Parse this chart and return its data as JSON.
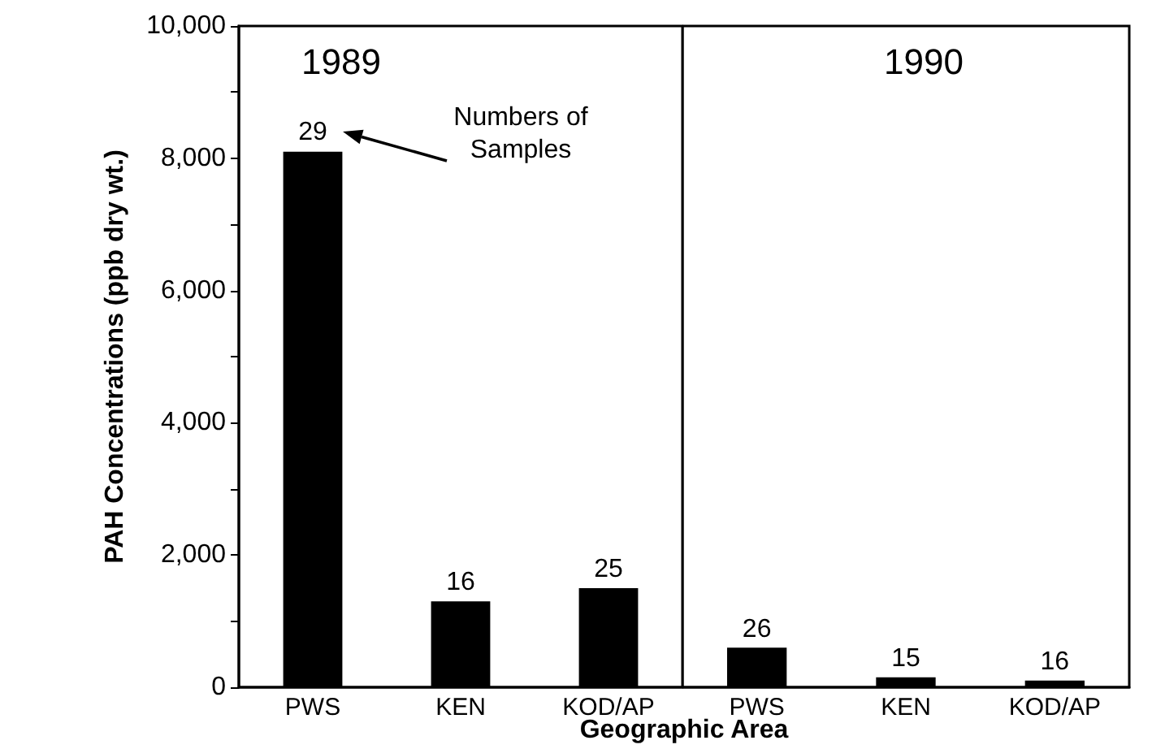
{
  "chart_data": [
    {
      "type": "bar",
      "title": "1989",
      "ylabel": "PAH Concentrations (ppb dry wt.)",
      "xlabel": "Geographic Area",
      "categories": [
        "PWS",
        "KEN",
        "KOD/AP"
      ],
      "values": [
        8100,
        1300,
        1500
      ],
      "color": "#000000",
      "annotations": [
        {
          "text": "29",
          "x": "PWS",
          "y": 8100
        },
        {
          "text": "16",
          "x": "KEN",
          "y": 1300
        },
        {
          "text": "25",
          "x": "KOD/AP",
          "y": 1500
        },
        "Numbers of Samples"
      ],
      "ylim": [
        0,
        10000
      ],
      "yticks": [
        0,
        {
          "value": 1000,
          "label": null
        },
        {
          "value": 2000,
          "label": "2,000"
        },
        {
          "value": 3000,
          "label": null
        },
        {
          "value": 4000,
          "label": "4,000"
        },
        {
          "value": 5000,
          "label": null
        },
        {
          "value": 6000,
          "label": "6,000"
        },
        {
          "value": 7000,
          "label": null
        },
        {
          "value": 8000,
          "label": "8,000"
        },
        {
          "value": 9000,
          "label": null
        },
        {
          "value": 10000,
          "label": "10,000"
        }
      ],
      "grid": false
    },
    {
      "type": "bar",
      "title": "1990",
      "categories": [
        "PWS",
        "KEN",
        "KOD/AP"
      ],
      "values": [
        600,
        150,
        100
      ],
      "color": "#000000",
      "annotations": [
        {
          "text": "26",
          "x": "PWS",
          "y": 600
        },
        {
          "text": "15",
          "x": "KEN",
          "y": 150
        },
        {
          "text": "16",
          "x": "KOD/AP",
          "y": 100
        }
      ],
      "ylim": [
        0,
        10000
      ],
      "tick_labels": "x",
      "grid": false
    }
  ]
}
